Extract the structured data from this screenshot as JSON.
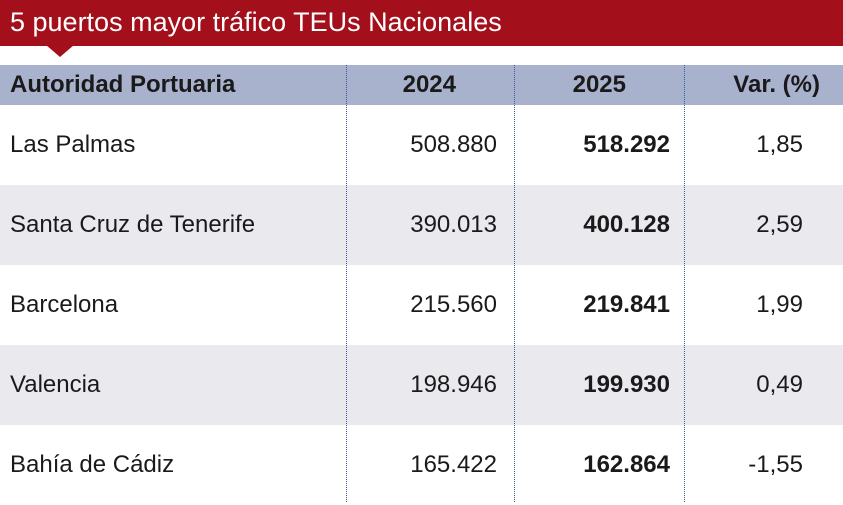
{
  "header": {
    "title": "5 puertos mayor tráfico TEUs Nacionales"
  },
  "table": {
    "columns": [
      "Autoridad Portuaria",
      "2024",
      "2025",
      "Var. (%)"
    ],
    "rows": [
      [
        "Las Palmas",
        "508.880",
        "518.292",
        "1,85"
      ],
      [
        "Santa Cruz de Tenerife",
        "390.013",
        "400.128",
        "2,59"
      ],
      [
        "Barcelona",
        "215.560",
        "219.841",
        "1,99"
      ],
      [
        "Valencia",
        "198.946",
        "199.930",
        "0,49"
      ],
      [
        "Bahía de Cádiz",
        "165.422",
        "162.864",
        "-1,55"
      ]
    ]
  }
}
